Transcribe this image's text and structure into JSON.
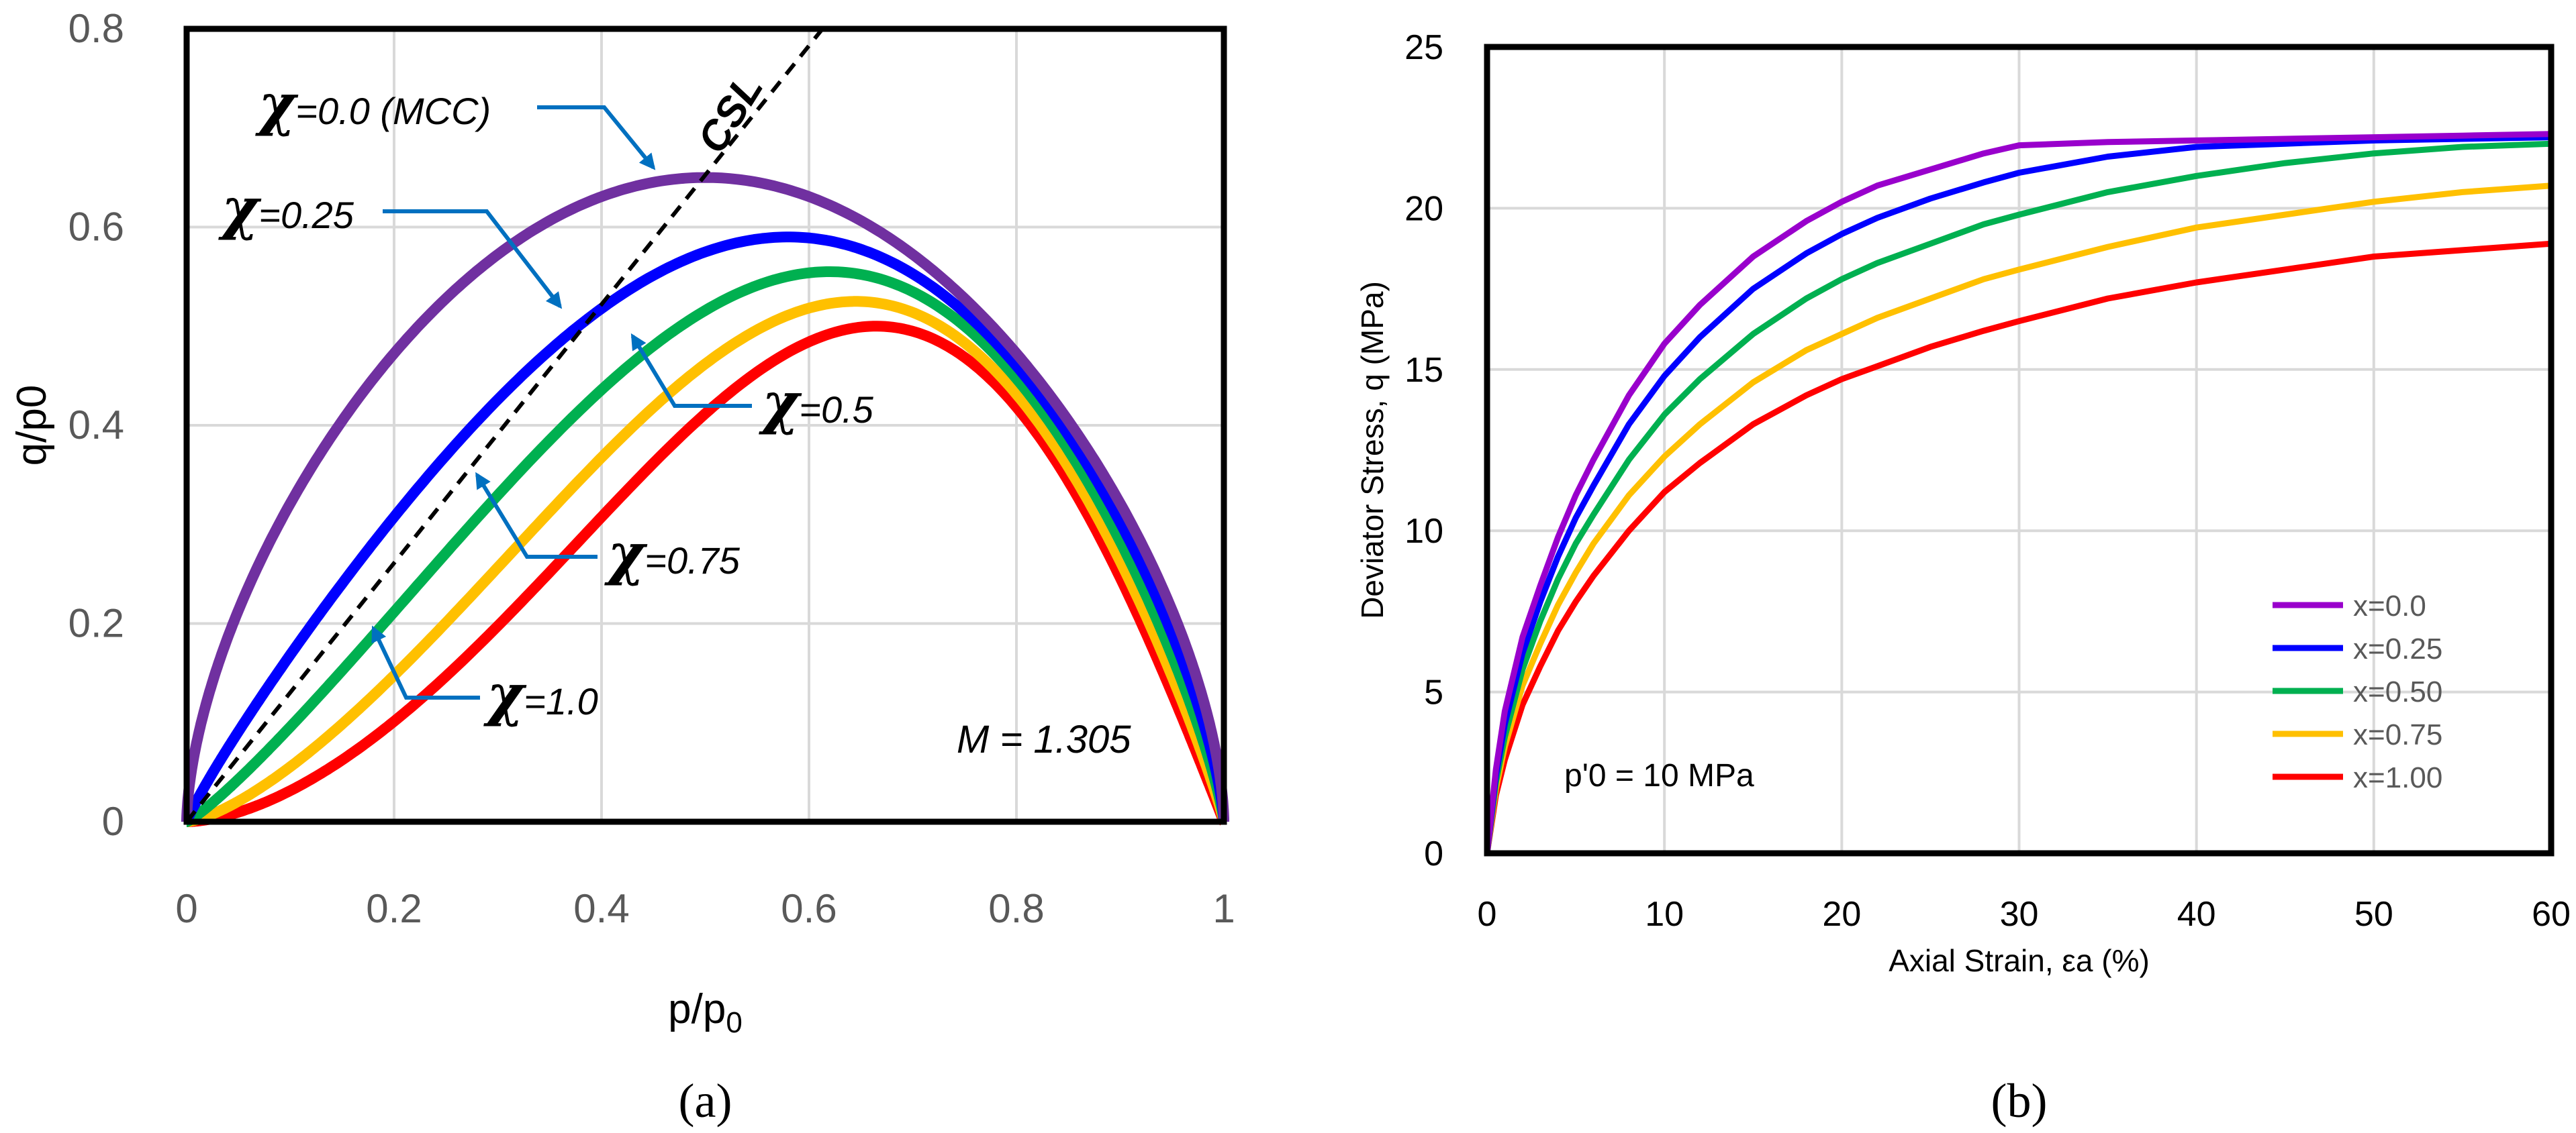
{
  "chart_data": [
    {
      "type": "line",
      "panel_label": "(a)",
      "xlabel": "p/p0",
      "xlabel_main": "p/p",
      "xlabel_sub": "0",
      "ylabel": "q/p0",
      "xlim": [
        0,
        1
      ],
      "ylim": [
        0,
        0.8
      ],
      "x_ticks": [
        "0",
        "0.2",
        "0.4",
        "0.6",
        "0.8",
        "1"
      ],
      "y_ticks": [
        "0",
        "0.2",
        "0.4",
        "0.6",
        "0.8"
      ],
      "M": 1.305,
      "M_label": "M = 1.305",
      "csl": {
        "label": "CSL",
        "slope": 1.305
      },
      "series": [
        {
          "name": "χ=0.0 (MCC)",
          "chi": 0.0,
          "peak": [
            0.5,
            0.65
          ],
          "color": "#7030A0"
        },
        {
          "name": "χ=0.25",
          "chi": 0.25,
          "peak": [
            0.58,
            0.59
          ],
          "color": "#0000FF"
        },
        {
          "name": "χ=0.5",
          "chi": 0.5,
          "peak": [
            0.62,
            0.555
          ],
          "color": "#00B050"
        },
        {
          "name": "χ=0.75",
          "chi": 0.75,
          "peak": [
            0.645,
            0.525
          ],
          "color": "#FFC000"
        },
        {
          "name": "χ=1.0",
          "chi": 1.0,
          "peak": [
            0.665,
            0.5
          ],
          "color": "#FF0000"
        }
      ],
      "annotations": [
        {
          "symbol": "χ",
          "text": "=0.0 (MCC)",
          "target": [
            0.45,
            0.66
          ]
        },
        {
          "symbol": "χ",
          "text": "=0.25",
          "target": [
            0.36,
            0.52
          ]
        },
        {
          "symbol": "χ",
          "text": "=0.5",
          "target": [
            0.43,
            0.49
          ]
        },
        {
          "symbol": "χ",
          "text": "=0.75",
          "target": [
            0.28,
            0.35
          ]
        },
        {
          "symbol": "χ",
          "text": "=1.0",
          "target": [
            0.18,
            0.195
          ]
        }
      ]
    },
    {
      "type": "line",
      "panel_label": "(b)",
      "xlabel": "Axial Strain, εa (%)",
      "ylabel": "Deviator Stress, q (MPa)",
      "xlim": [
        0,
        60
      ],
      "ylim": [
        0,
        25
      ],
      "x_ticks": [
        "0",
        "10",
        "20",
        "30",
        "40",
        "50",
        "60"
      ],
      "y_ticks": [
        "0",
        "5",
        "10",
        "15",
        "20",
        "25"
      ],
      "note": "p'0 = 10 MPa",
      "legend_position": "bottom-right",
      "series": [
        {
          "name": "x=0.0",
          "color": "#9900CC",
          "x": [
            0,
            0.5,
            1,
            2,
            3,
            4,
            5,
            6,
            8,
            10,
            12,
            15,
            18,
            20,
            22,
            25,
            28,
            30,
            35,
            40,
            45,
            50,
            55,
            60
          ],
          "y": [
            0,
            2.6,
            4.4,
            6.7,
            8.3,
            9.8,
            11.1,
            12.2,
            14.2,
            15.8,
            17.0,
            18.5,
            19.6,
            20.2,
            20.7,
            21.2,
            21.7,
            21.95,
            22.05,
            22.1,
            22.15,
            22.2,
            22.25,
            22.3
          ]
        },
        {
          "name": "x=0.25",
          "color": "#0000FF",
          "x": [
            0,
            0.5,
            1,
            2,
            3,
            4,
            5,
            6,
            8,
            10,
            12,
            15,
            18,
            20,
            22,
            25,
            28,
            30,
            35,
            40,
            45,
            50,
            55,
            60
          ],
          "y": [
            0,
            2.4,
            4.0,
            6.2,
            7.8,
            9.2,
            10.4,
            11.4,
            13.3,
            14.8,
            16.0,
            17.5,
            18.6,
            19.2,
            19.7,
            20.3,
            20.8,
            21.1,
            21.6,
            21.9,
            22.0,
            22.1,
            22.15,
            22.2
          ]
        },
        {
          "name": "x=0.50",
          "color": "#00B050",
          "x": [
            0,
            0.5,
            1,
            2,
            3,
            4,
            5,
            6,
            8,
            10,
            12,
            15,
            18,
            20,
            22,
            25,
            28,
            30,
            35,
            40,
            45,
            50,
            55,
            60
          ],
          "y": [
            0,
            2.2,
            3.6,
            5.7,
            7.2,
            8.5,
            9.6,
            10.5,
            12.2,
            13.6,
            14.7,
            16.1,
            17.2,
            17.8,
            18.3,
            18.9,
            19.5,
            19.8,
            20.5,
            21.0,
            21.4,
            21.7,
            21.9,
            22.0
          ]
        },
        {
          "name": "x=0.75",
          "color": "#FFC000",
          "x": [
            0,
            0.5,
            1,
            2,
            3,
            4,
            5,
            6,
            8,
            10,
            12,
            15,
            18,
            20,
            22,
            25,
            28,
            30,
            35,
            40,
            45,
            50,
            55,
            60
          ],
          "y": [
            0,
            2.0,
            3.3,
            5.2,
            6.5,
            7.7,
            8.7,
            9.6,
            11.1,
            12.3,
            13.3,
            14.6,
            15.6,
            16.1,
            16.6,
            17.2,
            17.8,
            18.1,
            18.8,
            19.4,
            19.8,
            20.2,
            20.5,
            20.7
          ]
        },
        {
          "name": "x=1.00",
          "color": "#FF0000",
          "x": [
            0,
            0.5,
            1,
            2,
            3,
            4,
            5,
            6,
            8,
            10,
            12,
            15,
            18,
            20,
            22,
            25,
            28,
            30,
            35,
            40,
            45,
            50,
            55,
            60
          ],
          "y": [
            0,
            1.8,
            2.9,
            4.6,
            5.8,
            6.9,
            7.8,
            8.6,
            10.0,
            11.2,
            12.1,
            13.3,
            14.2,
            14.7,
            15.1,
            15.7,
            16.2,
            16.5,
            17.2,
            17.7,
            18.1,
            18.5,
            18.7,
            18.9
          ]
        }
      ]
    }
  ]
}
